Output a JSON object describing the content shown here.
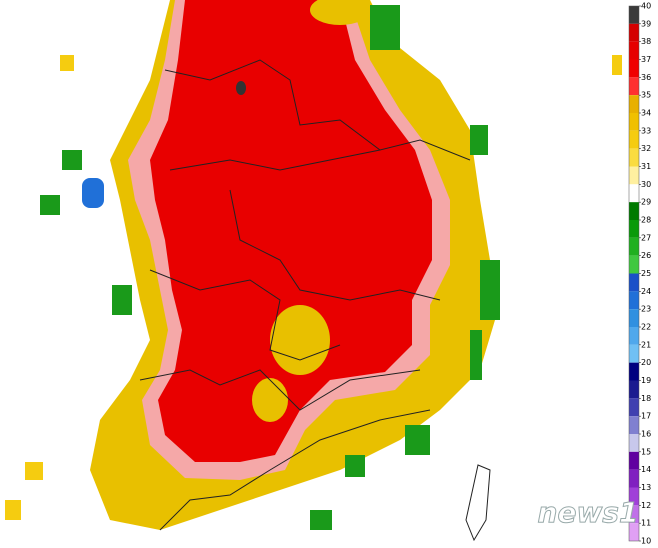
{
  "colorbar": {
    "ticks": [
      40,
      39,
      38,
      37,
      36,
      35,
      34,
      33,
      32,
      31,
      30,
      29,
      28,
      27,
      26,
      25,
      24,
      23,
      22,
      21,
      20,
      19,
      18,
      17,
      16,
      15,
      14,
      13,
      12,
      11,
      10
    ],
    "colors": [
      "#3a3a3a",
      "#d40000",
      "#e60000",
      "#f00000",
      "#ff3030",
      "#e8b000",
      "#f0c000",
      "#f5cc10",
      "#fadc40",
      "#fff0a0",
      "#ffffff",
      "#007a00",
      "#0a9a0a",
      "#20b020",
      "#40c840",
      "#1a50c8",
      "#2070d8",
      "#3090e0",
      "#50a8ec",
      "#70c0f4",
      "#000080",
      "#1a1a90",
      "#4040b0",
      "#8080d0",
      "#c8c8ec",
      "#6000a0",
      "#8020c0",
      "#a040d8",
      "#c070e8",
      "#e0a0f4"
    ]
  },
  "watermark": "news1"
}
